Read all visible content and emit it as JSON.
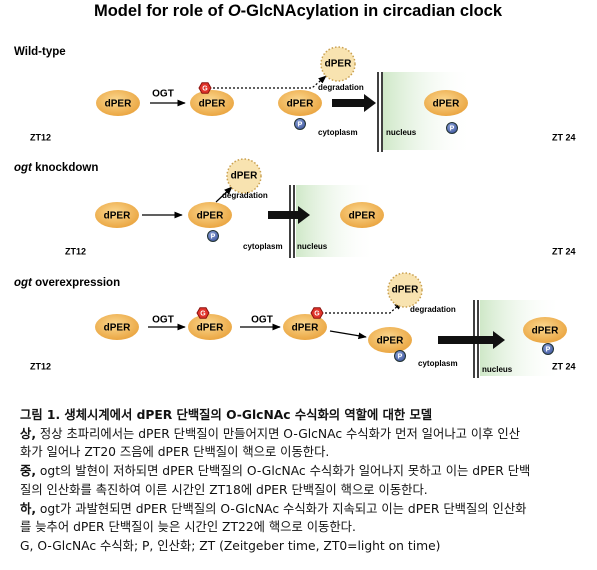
{
  "header": {
    "title": {
      "before": "Model for role of ",
      "italic": "O",
      "after": "-GlcNAcylation in circadian clock"
    }
  },
  "panels": [
    {
      "label": {
        "italic": "",
        "rest": "Wild-type"
      },
      "proteins": [
        "dPER",
        "dPER",
        "dPER",
        "dPER"
      ],
      "enzymes": [
        "OGT"
      ],
      "glyco": [
        "G"
      ],
      "phospho": [
        "P",
        "P"
      ],
      "degraded": "dPER",
      "degradation": "degradation",
      "cytoplasm": "cytoplasm",
      "nucleus": "nucleus",
      "start": "ZT12",
      "end": "ZT 24"
    },
    {
      "label": {
        "italic": "ogt",
        "rest": " knockdown"
      },
      "proteins": [
        "dPER",
        "dPER",
        "dPER"
      ],
      "enzymes": [],
      "glyco": [],
      "phospho": [
        "P"
      ],
      "degraded": "dPER",
      "degradation": "degradation",
      "cytoplasm": "cytoplasm",
      "nucleus": "nucleus",
      "start": "ZT12",
      "end": "ZT 24"
    },
    {
      "label": {
        "italic": "ogt",
        "rest": " overexpression"
      },
      "proteins": [
        "dPER",
        "dPER",
        "dPER",
        "dPER",
        "dPER"
      ],
      "enzymes": [
        "OGT",
        "OGT"
      ],
      "glyco": [
        "G",
        "G"
      ],
      "phospho": [
        "P",
        "P"
      ],
      "degraded": "dPER",
      "degradation": "degradation",
      "cytoplasm": "cytoplasm",
      "nucleus": "nucleus",
      "start": "ZT12",
      "end": "ZT 24"
    }
  ],
  "caption": {
    "heading": "그림 1. 생체시계에서 dPER 단백질의 O-GlcNAc 수식화의 역할에 대한 모델",
    "lines": [
      {
        "lead": "상,",
        "text": " 정상 초파리에서는 dPER 단백질이 만들어지면 O-GlcNAc 수식화가 먼저 일어나고 이후 인산"
      },
      {
        "lead": "",
        "text": "화가 일어나 ZT20 즈음에 dPER 단백질이 핵으로 이동한다."
      },
      {
        "lead": "중,",
        "text": " ogt의 발현이 저하되면 dPER 단백질의 O-GlcNAc 수식화가 일어나지 못하고 이는 dPER 단백"
      },
      {
        "lead": "",
        "text": "질의 인산화를 촉진하여 이른 시간인 ZT18에 dPER 단백질이 핵으로 이동한다."
      },
      {
        "lead": "하,",
        "text": " ogt가 과발현되면 dPER 단백질의 O-GlcNAc 수식화가 지속되고 이는 dPER 단백질의 인산화"
      },
      {
        "lead": "",
        "text": "를 늦추어 dPER 단백질이 늦은 시간인 ZT22에 핵으로 이동한다."
      },
      {
        "lead": "",
        "text": "G, O-GlcNAc 수식화; P, 인산화; ZT (Zeitgeber time, ZT0=light on time)"
      }
    ]
  }
}
